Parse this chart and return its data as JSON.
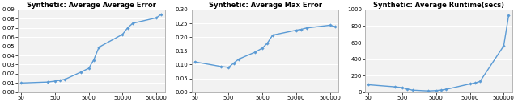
{
  "plot1": {
    "title": "Synthetic: Average Average Error",
    "x": [
      50,
      300,
      500,
      700,
      1000,
      3000,
      5000,
      7000,
      10000,
      50000,
      70000,
      100000,
      500000,
      700000
    ],
    "y": [
      0.01,
      0.011,
      0.012,
      0.013,
      0.014,
      0.022,
      0.026,
      0.035,
      0.049,
      0.063,
      0.07,
      0.075,
      0.081,
      0.085
    ],
    "ylim": [
      0,
      0.09
    ],
    "yticks": [
      0,
      0.01,
      0.02,
      0.03,
      0.04,
      0.05,
      0.06,
      0.07,
      0.08,
      0.09
    ]
  },
  "plot2": {
    "title": "Synthetic: Average Max Error",
    "x": [
      50,
      300,
      500,
      700,
      1000,
      3000,
      5000,
      7000,
      10000,
      50000,
      70000,
      100000,
      500000,
      700000
    ],
    "y": [
      0.11,
      0.093,
      0.09,
      0.105,
      0.12,
      0.145,
      0.16,
      0.178,
      0.207,
      0.225,
      0.228,
      0.233,
      0.243,
      0.238
    ],
    "ylim": [
      0,
      0.3
    ],
    "yticks": [
      0,
      0.05,
      0.1,
      0.15,
      0.2,
      0.25,
      0.3
    ]
  },
  "plot3": {
    "title": "Synthetic: Average Runtime(secs)",
    "x": [
      50,
      300,
      500,
      700,
      1000,
      3000,
      5000,
      7000,
      10000,
      50000,
      70000,
      100000,
      500000,
      700000
    ],
    "y": [
      90,
      65,
      55,
      40,
      25,
      15,
      20,
      25,
      35,
      100,
      110,
      130,
      560,
      930
    ],
    "ylim": [
      0,
      1000
    ],
    "yticks": [
      0,
      200,
      400,
      600,
      800,
      1000
    ]
  },
  "line_color": "#5B9BD5",
  "marker": "D",
  "marker_size": 1.8,
  "linewidth": 1.0,
  "title_fontsize": 6.0,
  "tick_fontsize": 5.0,
  "bg_color": "#f2f2f2",
  "grid_color": "#ffffff",
  "xticks": [
    50,
    500,
    5000,
    50000,
    500000
  ],
  "xtick_labels": [
    "50",
    "500",
    "5000",
    "50000",
    "500000"
  ]
}
